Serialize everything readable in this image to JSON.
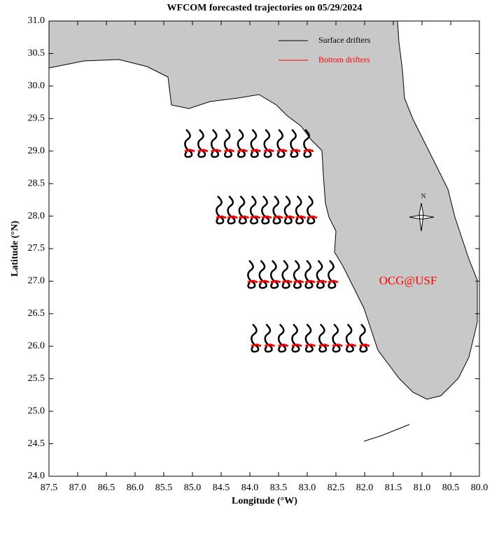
{
  "chart_data": {
    "type": "map",
    "title": "WFCOM forecasted trajectories on 05/29/2024",
    "x_label": "Longitude (°W)",
    "y_label": "Latitude (°N)",
    "xlim": [
      87.5,
      80.0
    ],
    "ylim": [
      24.0,
      31.0
    ],
    "xticks": [
      87.5,
      {
        "value": 87,
        "label": "87.0"
      },
      86.5,
      {
        "value": 86,
        "label": "86.0"
      },
      85.5,
      {
        "value": 85,
        "label": "85.0"
      },
      84.5,
      {
        "value": 84,
        "label": "84.0"
      },
      83.5,
      {
        "value": 83,
        "label": "83.0"
      },
      82.5,
      {
        "value": 82,
        "label": "82.0"
      },
      81.5,
      {
        "value": 81,
        "label": "81.0"
      },
      80.5,
      {
        "value": 80,
        "label": "80.0"
      }
    ],
    "yticks": [
      {
        "value": 24,
        "label": "24.0"
      },
      24.5,
      {
        "value": 25,
        "label": "25.0"
      },
      25.5,
      {
        "value": 26,
        "label": "26.0"
      },
      26.5,
      {
        "value": 27,
        "label": "27.0"
      },
      27.5,
      {
        "value": 28,
        "label": "28.0"
      },
      28.5,
      {
        "value": 29,
        "label": "29.0"
      },
      29.5,
      {
        "value": 30,
        "label": "30.0"
      },
      30.5,
      {
        "value": 31,
        "label": "31.0"
      }
    ],
    "series": [
      {
        "name": "Surface drifters",
        "color": "#000000"
      },
      {
        "name": "Bottom drifters",
        "color": "#ff0000"
      }
    ],
    "annotations": {
      "watermark": "OCG@USF",
      "compass": "N"
    }
  }
}
